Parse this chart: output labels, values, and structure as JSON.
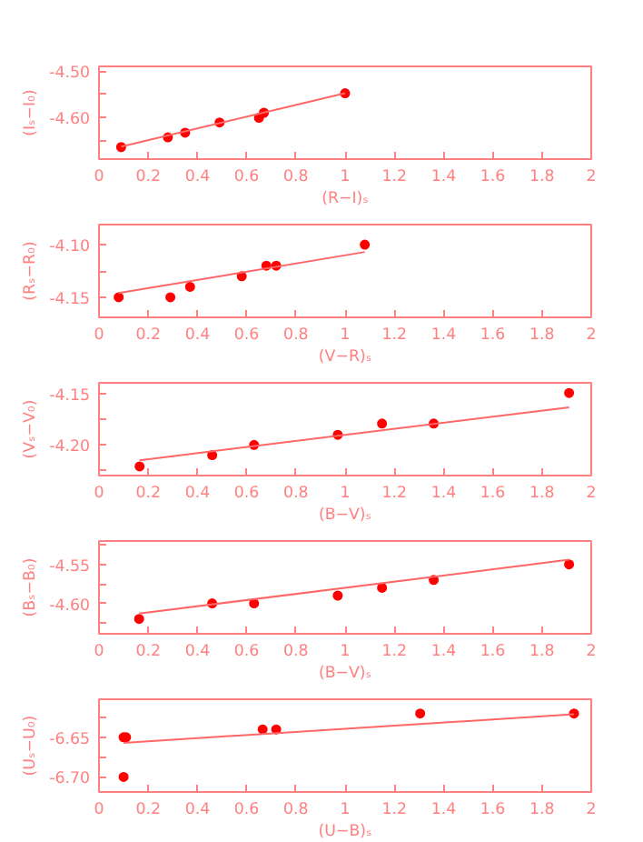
{
  "chart_data": [
    {
      "type": "scatter",
      "xlabel": "(R−I)ₛ",
      "ylabel": "(Iₛ−I₀)",
      "xlim": [
        0,
        2
      ],
      "xticks": [
        0,
        0.2,
        0.4,
        0.6,
        0.8,
        1,
        1.2,
        1.4,
        1.6,
        1.8,
        2
      ],
      "ylim": [
        -4.69,
        -4.49
      ],
      "yticks": [
        {
          "value": -4.5,
          "label": "-4.50"
        },
        {
          "value": -4.55,
          "label": null
        },
        {
          "value": -4.6,
          "label": "-4.60"
        },
        {
          "value": -4.65,
          "label": null
        }
      ],
      "series": [
        {
          "marker": "circle",
          "color": "#ff0000",
          "x": [
            0.09,
            0.28,
            0.35,
            0.49,
            0.65,
            0.67,
            1.0
          ],
          "values": [
            -4.664,
            -4.643,
            -4.633,
            -4.611,
            -4.601,
            -4.59,
            -4.548
          ]
        },
        {
          "type": "line",
          "color": "#ff6666",
          "x": [
            0.09,
            1.0
          ],
          "values": [
            -4.663,
            -4.548
          ]
        }
      ]
    },
    {
      "type": "scatter",
      "xlabel": "(V−R)ₛ",
      "ylabel": "(Rₛ−R₀)",
      "xlim": [
        0,
        2
      ],
      "xticks": [
        0,
        0.2,
        0.4,
        0.6,
        0.8,
        1,
        1.2,
        1.4,
        1.6,
        1.8,
        2
      ],
      "ylim": [
        -4.169,
        -4.081
      ],
      "yticks": [
        {
          "value": -4.1,
          "label": "-4.10"
        },
        {
          "value": -4.125,
          "label": null
        },
        {
          "value": -4.15,
          "label": "-4.15"
        }
      ],
      "series": [
        {
          "marker": "circle",
          "color": "#ff0000",
          "x": [
            0.08,
            0.29,
            0.37,
            0.58,
            0.68,
            0.72,
            1.08
          ],
          "values": [
            -4.15,
            -4.15,
            -4.14,
            -4.13,
            -4.12,
            -4.12,
            -4.1
          ]
        },
        {
          "type": "line",
          "color": "#ff6666",
          "x": [
            0.08,
            1.08
          ],
          "values": [
            -4.146,
            -4.107
          ]
        }
      ]
    },
    {
      "type": "scatter",
      "xlabel": "(B−V)ₛ",
      "ylabel": "(Vₛ−V₀)",
      "xlim": [
        0,
        2
      ],
      "xticks": [
        0,
        0.2,
        0.4,
        0.6,
        0.8,
        1,
        1.2,
        1.4,
        1.6,
        1.8,
        2
      ],
      "ylim": [
        -4.23,
        -4.139
      ],
      "yticks": [
        {
          "value": -4.15,
          "label": "-4.15"
        },
        {
          "value": -4.175,
          "label": null
        },
        {
          "value": -4.2,
          "label": "-4.20"
        },
        {
          "value": -4.225,
          "label": null
        }
      ],
      "series": [
        {
          "marker": "circle",
          "color": "#ff0000",
          "x": [
            0.165,
            0.46,
            0.63,
            0.97,
            1.15,
            1.36,
            1.91
          ],
          "values": [
            -4.221,
            -4.21,
            -4.2,
            -4.19,
            -4.179,
            -4.179,
            -4.149
          ]
        },
        {
          "type": "line",
          "color": "#ff6666",
          "x": [
            0.165,
            1.91
          ],
          "values": [
            -4.215,
            -4.163
          ]
        }
      ]
    },
    {
      "type": "scatter",
      "xlabel": "(B−V)ₛ",
      "ylabel": "(Bₛ−B₀)",
      "xlim": [
        0,
        2
      ],
      "xticks": [
        0,
        0.2,
        0.4,
        0.6,
        0.8,
        1,
        1.2,
        1.4,
        1.6,
        1.8,
        2
      ],
      "ylim": [
        -4.639,
        -4.52
      ],
      "yticks": [
        {
          "value": -4.525,
          "label": null
        },
        {
          "value": -4.55,
          "label": "-4.55"
        },
        {
          "value": -4.575,
          "label": null
        },
        {
          "value": -4.6,
          "label": "-4.60"
        },
        {
          "value": -4.625,
          "label": null
        }
      ],
      "series": [
        {
          "marker": "circle",
          "color": "#ff0000",
          "x": [
            0.163,
            0.46,
            0.63,
            0.97,
            1.15,
            1.36,
            1.91
          ],
          "values": [
            -4.62,
            -4.6,
            -4.6,
            -4.59,
            -4.58,
            -4.57,
            -4.55
          ]
        },
        {
          "type": "line",
          "color": "#ff6666",
          "x": [
            0.163,
            1.91
          ],
          "values": [
            -4.613,
            -4.544
          ]
        }
      ]
    },
    {
      "type": "scatter",
      "xlabel": "(U−B)ₛ",
      "ylabel": "(Uₛ−U₀)",
      "xlim": [
        0,
        2
      ],
      "xticks": [
        0,
        0.2,
        0.4,
        0.6,
        0.8,
        1,
        1.2,
        1.4,
        1.6,
        1.8,
        2
      ],
      "ylim": [
        -6.719,
        -6.602
      ],
      "yticks": [
        {
          "value": -6.625,
          "label": null
        },
        {
          "value": -6.65,
          "label": "-6.65"
        },
        {
          "value": -6.675,
          "label": null
        },
        {
          "value": -6.7,
          "label": "-6.70"
        }
      ],
      "series": [
        {
          "marker": "circle",
          "color": "#ff0000",
          "x": [
            0.1,
            0.11,
            0.1,
            0.665,
            0.72,
            1.305,
            1.93
          ],
          "values": [
            -6.65,
            -6.65,
            -6.7,
            -6.64,
            -6.64,
            -6.62,
            -6.62
          ]
        },
        {
          "type": "line",
          "color": "#ff6666",
          "x": [
            0.1,
            1.93
          ],
          "values": [
            -6.657,
            -6.621
          ]
        }
      ]
    }
  ]
}
